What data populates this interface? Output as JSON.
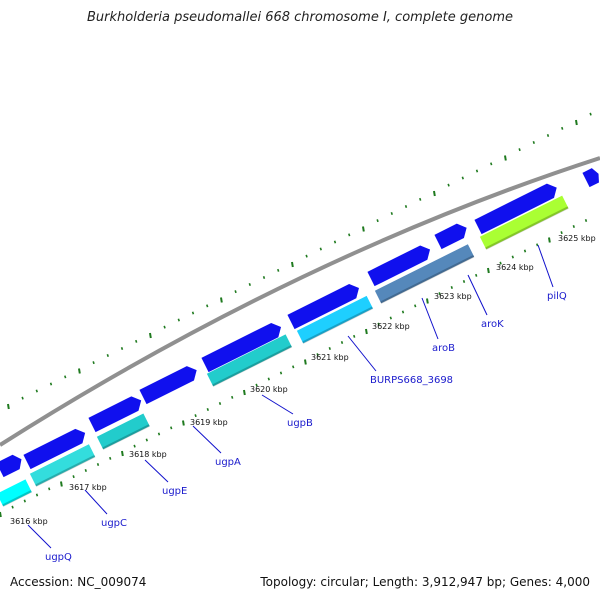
{
  "title": "Burkholderia pseudomallei 668 chromosome I, complete genome",
  "accession": "Accession: NC_009074",
  "topology": "Topology: circular; Length: 3,912,947 bp; Genes: 4,000",
  "colors": {
    "backbone": "#909090",
    "tick": "#1f7a1f",
    "forward_gene": "#1010ee",
    "leader": "#1010cc",
    "label": "#1a1acc"
  },
  "kbp_labels": [
    "3616 kbp",
    "3617 kbp",
    "3618 kbp",
    "3619 kbp",
    "3620 kbp",
    "3621 kbp",
    "3622 kbp",
    "3623 kbp",
    "3624 kbp",
    "3625 kbp"
  ],
  "genes": [
    {
      "name": "ugpQ",
      "color": "#00ffff"
    },
    {
      "name": "ugpC",
      "color": "#33dddd"
    },
    {
      "name": "ugpE",
      "color": "#22cccc"
    },
    {
      "name": "ugpA",
      "color": "#22bbbb"
    },
    {
      "name": "ugpB",
      "color": "#22cccc"
    },
    {
      "name": "BURPS668_3698",
      "color": "#1ecfff"
    },
    {
      "name": "aroB",
      "color": "#5588bb"
    },
    {
      "name": "aroK",
      "color": "#1010ee"
    },
    {
      "name": "pilQ",
      "color": "#aaff33"
    }
  ]
}
